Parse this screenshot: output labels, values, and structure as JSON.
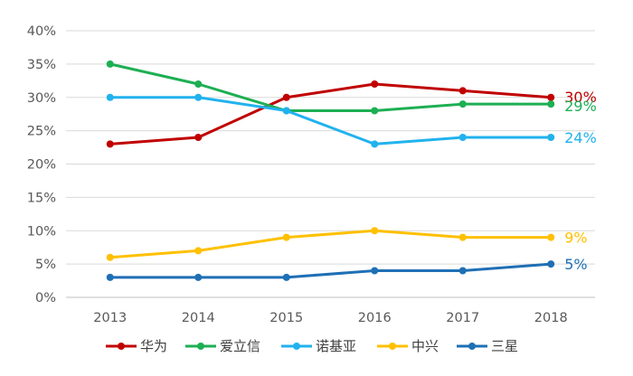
{
  "chart_data": {
    "type": "line",
    "title": "",
    "xlabel": "",
    "ylabel": "",
    "categories": [
      "2013",
      "2014",
      "2015",
      "2016",
      "2017",
      "2018"
    ],
    "ylim": [
      0,
      40
    ],
    "y_ticks": [
      "0%",
      "5%",
      "10%",
      "15%",
      "20%",
      "25%",
      "30%",
      "35%",
      "40%"
    ],
    "grid": "horizontal",
    "legend_position": "bottom",
    "series": [
      {
        "name": "华为",
        "color": "#C00000",
        "values": [
          23,
          24,
          30,
          32,
          31,
          30
        ],
        "end_label": "30%"
      },
      {
        "name": "爱立信",
        "color": "#1DAF53",
        "values": [
          35,
          32,
          28,
          28,
          29,
          29
        ],
        "end_label": "29%"
      },
      {
        "name": "诺基亚",
        "color": "#21B2EE",
        "values": [
          30,
          30,
          28,
          23,
          24,
          24
        ],
        "end_label": "24%"
      },
      {
        "name": "中兴",
        "color": "#FFC000",
        "values": [
          6,
          7,
          9,
          10,
          9,
          9
        ],
        "end_label": "9%"
      },
      {
        "name": "三星",
        "color": "#1F6FB5",
        "values": [
          3,
          3,
          3,
          4,
          4,
          5
        ],
        "end_label": "5%"
      }
    ]
  }
}
